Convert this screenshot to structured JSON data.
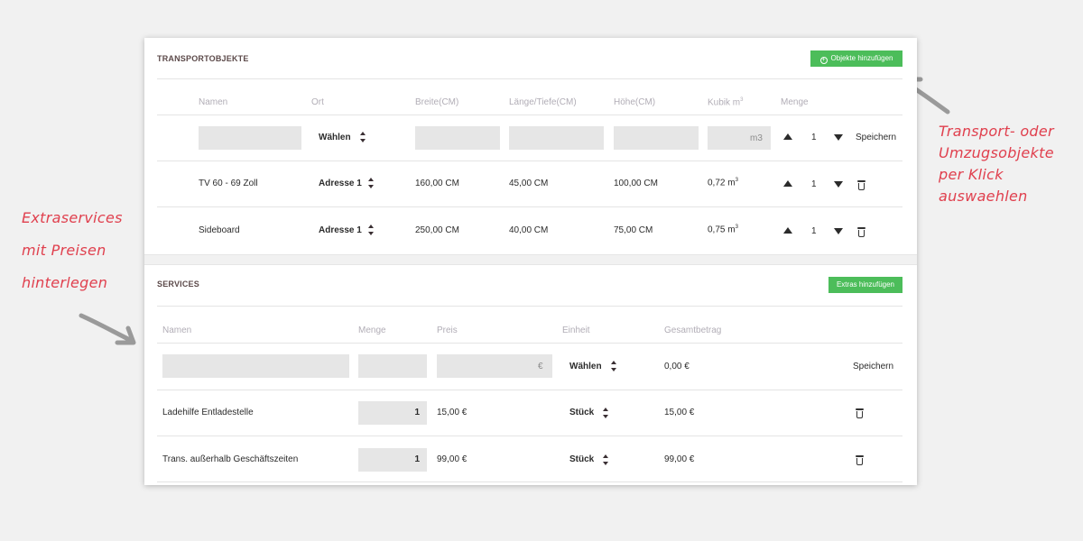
{
  "annotations": {
    "left": [
      "Extraservices",
      "mit Preisen",
      "hinterlegen"
    ],
    "right": [
      "Transport- oder",
      "Umzugsobjekte",
      "per Klick",
      "auswaehlen"
    ]
  },
  "transport": {
    "title": "TRANSPORTOBJEKTE",
    "add_button": "Objekte hinzufügen",
    "columns": {
      "name": "Namen",
      "ort": "Ort",
      "breite": "Breite(CM)",
      "laenge": "Länge/Tiefe(CM)",
      "hoehe": "Höhe(CM)",
      "kubik": "Kubik m",
      "kubik_sup": "3",
      "menge": "Menge"
    },
    "input_row": {
      "ort_select": "Wählen",
      "kubik_placeholder": "m3",
      "qty": "1",
      "save": "Speichern"
    },
    "rows": [
      {
        "name": "TV 60 - 69 Zoll",
        "ort": "Adresse 1",
        "breite": "160,00 CM",
        "laenge": "45,00 CM",
        "hoehe": "100,00 CM",
        "kubik": "0,72 m",
        "kubik_sup": "3",
        "qty": "1"
      },
      {
        "name": "Sideboard",
        "ort": "Adresse 1",
        "breite": "250,00 CM",
        "laenge": "40,00 CM",
        "hoehe": "75,00 CM",
        "kubik": "0,75 m",
        "kubik_sup": "3",
        "qty": "1"
      }
    ]
  },
  "services": {
    "title": "SERVICES",
    "add_button": "Extras hinzufügen",
    "columns": {
      "name": "Namen",
      "menge": "Menge",
      "preis": "Preis",
      "einheit": "Einheit",
      "gesamt": "Gesamtbetrag"
    },
    "input_row": {
      "preis_placeholder": "€",
      "einheit_select": "Wählen",
      "gesamt": "0,00 €",
      "save": "Speichern"
    },
    "rows": [
      {
        "name": "Ladehilfe Entladestelle",
        "menge": "1",
        "preis": "15,00 €",
        "einheit": "Stück",
        "gesamt": "15,00 €"
      },
      {
        "name": "Trans. außerhalb Geschäftszeiten",
        "menge": "1",
        "preis": "99,00 €",
        "einheit": "Stück",
        "gesamt": "99,00 €"
      }
    ]
  },
  "colors": {
    "accent_green": "#4cbd5a",
    "annotation_red": "#e0404e",
    "input_grey": "#e6e6e6"
  }
}
